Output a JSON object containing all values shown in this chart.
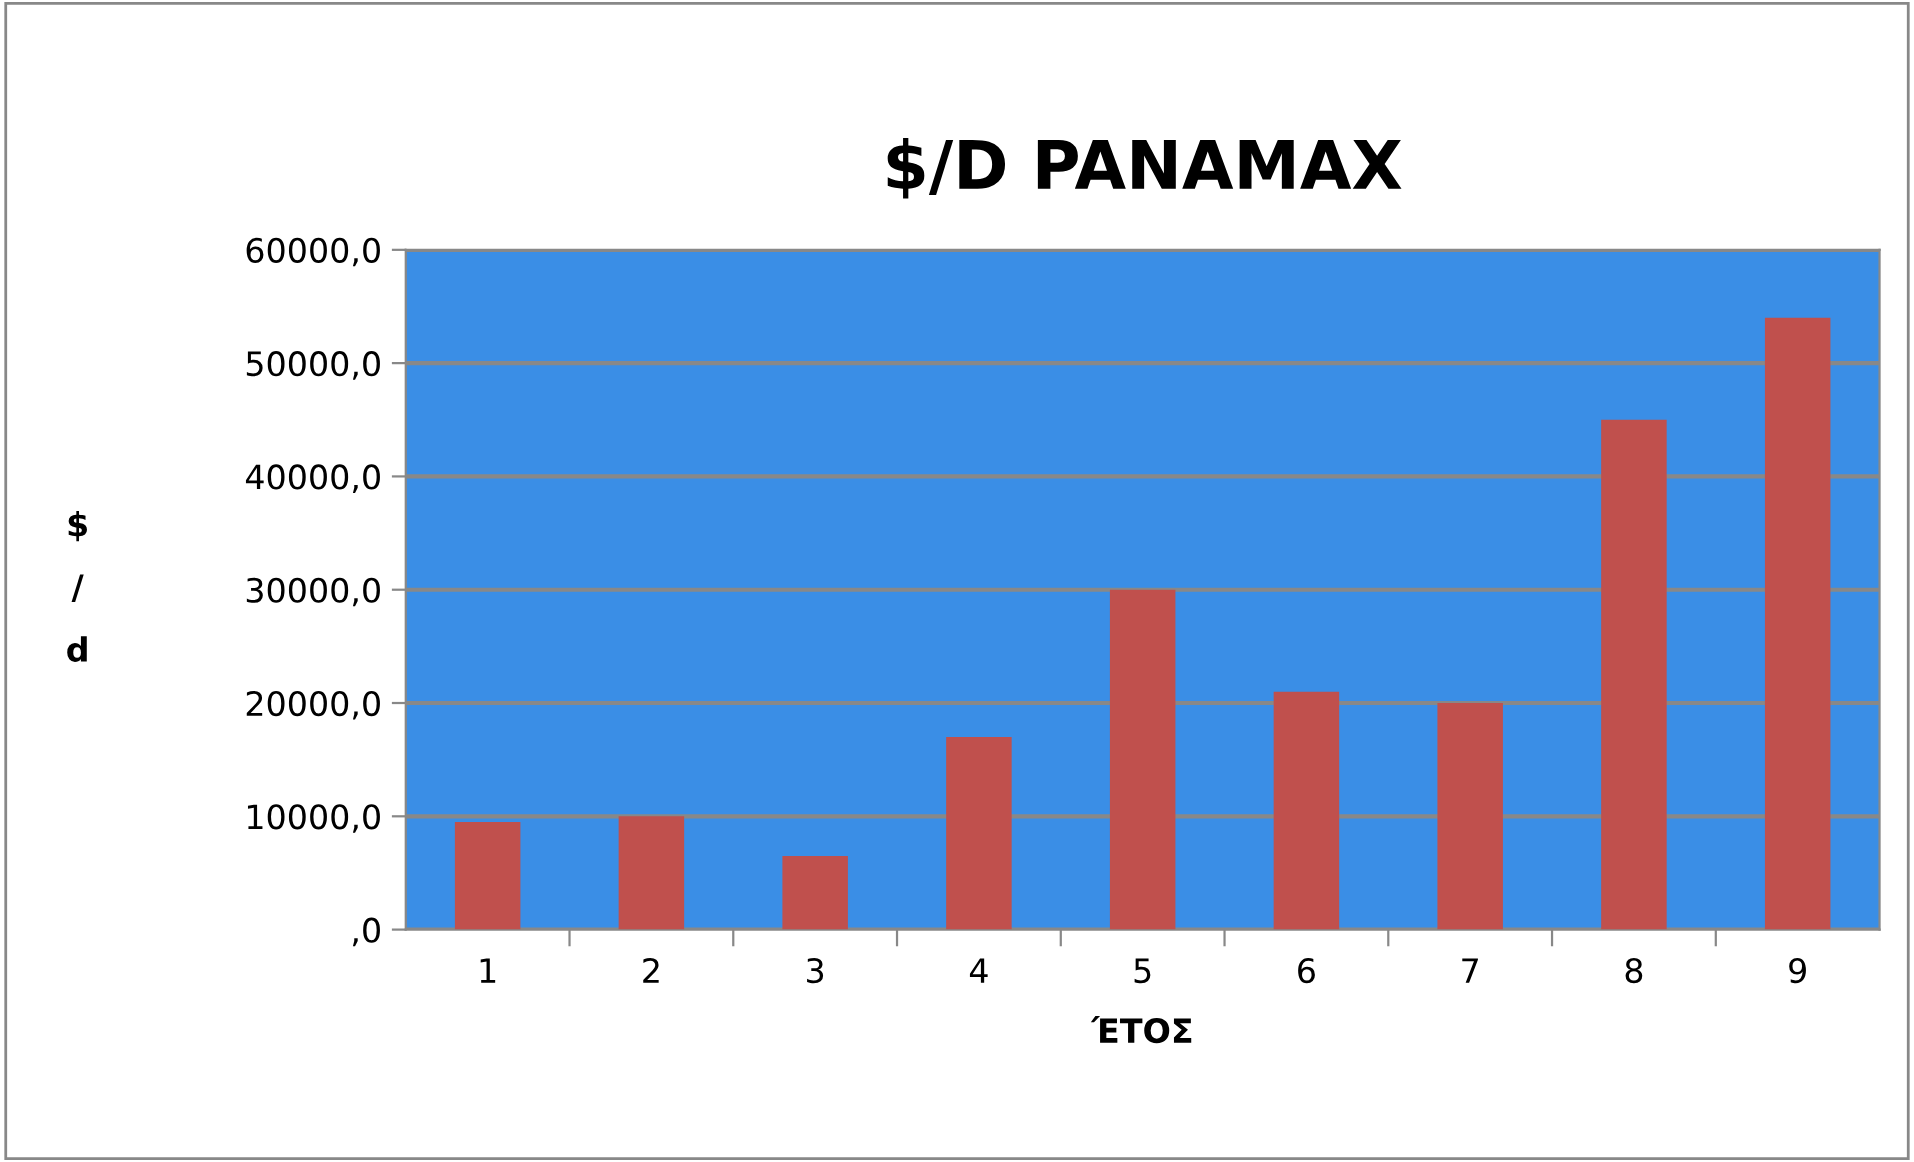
{
  "chart_data": {
    "type": "bar",
    "title": "$/D PANAMAX",
    "xlabel": "ΈΤΟΣ",
    "ylabel": "$/d",
    "categories": [
      "1",
      "2",
      "3",
      "4",
      "5",
      "6",
      "7",
      "8",
      "9"
    ],
    "values": [
      9500,
      10000,
      6500,
      17000,
      30000,
      21000,
      20000,
      45000,
      54000
    ],
    "color": "#c0504d",
    "ylim": [
      0,
      60000
    ],
    "yticks": [
      {
        "value": 0,
        "label": ",0"
      },
      {
        "value": 10000,
        "label": "10000,0"
      },
      {
        "value": 20000,
        "label": "20000,0"
      },
      {
        "value": 30000,
        "label": "30000,0"
      },
      {
        "value": 40000,
        "label": "40000,0"
      },
      {
        "value": 50000,
        "label": "50000,0"
      },
      {
        "value": 60000,
        "label": "60000,0"
      }
    ],
    "grid": "y",
    "legend": false
  }
}
